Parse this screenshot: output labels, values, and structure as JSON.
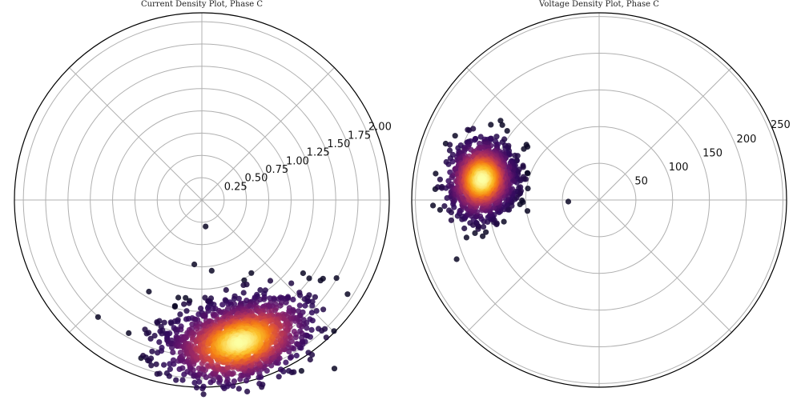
{
  "chart_data": [
    {
      "type": "scatter",
      "projection": "polar",
      "title": "Current Density Plot, Phase C",
      "rlim": [
        0,
        2.1
      ],
      "r_ticks": [
        0.25,
        0.5,
        0.75,
        1.0,
        1.25,
        1.5,
        1.75,
        2.0
      ],
      "r_tick_labels": [
        "0.25",
        "0.50",
        "0.75",
        "1.00",
        "1.25",
        "1.50",
        "1.75",
        "2.00"
      ],
      "theta_gridlines_deg": [
        0,
        45,
        90,
        135,
        180,
        225,
        270,
        315
      ],
      "grid": true,
      "colormap": "inferno",
      "marker_color_dark": "#0b0724",
      "cluster": {
        "theta_deg": -75,
        "theta_spread_deg": 14,
        "r_center": 1.65,
        "r_spread": 0.22,
        "n_points": 1400
      },
      "outliers": [
        {
          "theta_deg": -82,
          "r": 0.3
        }
      ]
    },
    {
      "type": "scatter",
      "projection": "polar",
      "title": "Voltage Density Plot, Phase C",
      "rlim": [
        0,
        255
      ],
      "r_ticks": [
        50,
        100,
        150,
        200,
        250
      ],
      "r_tick_labels": [
        "50",
        "100",
        "150",
        "200",
        "250"
      ],
      "theta_gridlines_deg": [
        0,
        45,
        90,
        135,
        180,
        225,
        270,
        315
      ],
      "grid": true,
      "colormap": "inferno",
      "marker_color_dark": "#0b0724",
      "cluster": {
        "theta_deg": 170,
        "theta_spread_deg": 9,
        "r_center": 162,
        "r_spread": 22,
        "n_points": 1300
      },
      "outliers": [
        {
          "theta_deg": 183,
          "r": 42
        }
      ]
    }
  ]
}
